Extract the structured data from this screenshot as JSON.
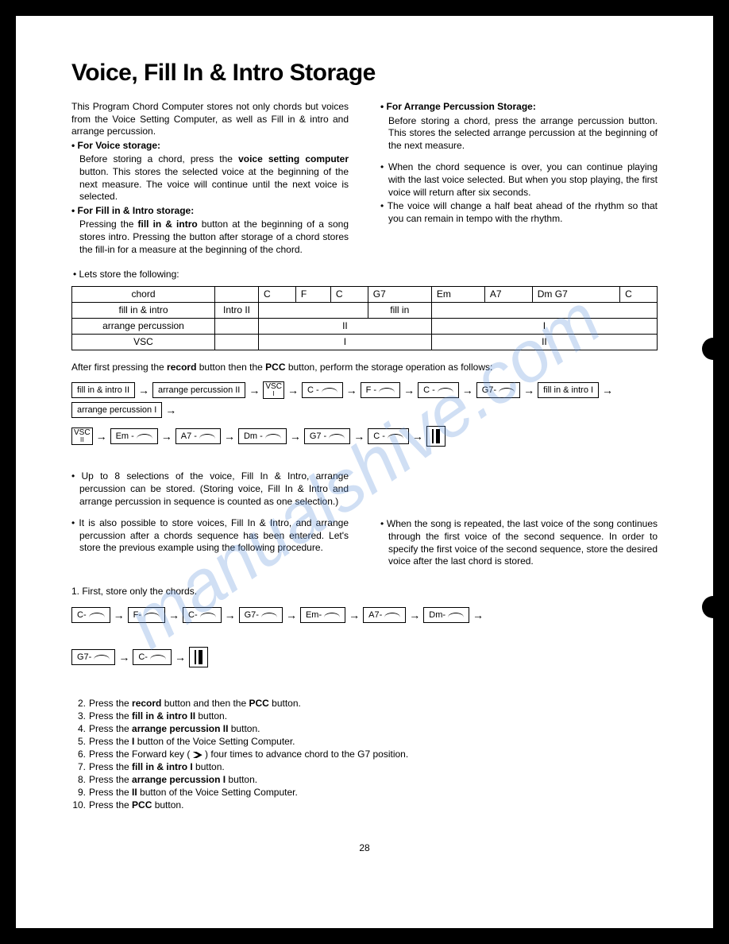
{
  "watermark": "manualshive.com",
  "title": "Voice, Fill In & Intro Storage",
  "intro_left": {
    "p1": "This Program Chord Computer stores not only chords but voices from the Voice Setting Computer, as well as Fill in & intro and arrange percussion.",
    "h1": "For Voice storage:",
    "p2a": "Before storing a chord, press the ",
    "p2b": "voice setting computer",
    "p2c": " button. This stores the selected voice at the beginning of the next measure. The voice will continue until the next voice is selected.",
    "h2": "For Fill in & Intro storage:",
    "p3a": "Pressing the ",
    "p3b": "fill in & intro",
    "p3c": " button at the beginning of a song stores intro. Pressing the button after storage of a chord stores the fill-in for a measure at the beginning of the chord."
  },
  "intro_right": {
    "h1": "For Arrange Percussion Storage:",
    "p1": "Before storing a chord, press the arrange percussion button. This stores the selected arrange percussion at the beginning of the next measure.",
    "p2": "When the chord sequence is over, you can continue playing with the last voice selected. But when you stop playing, the first voice will return after six seconds.",
    "p3": "The voice will change a half beat ahead of the rhythm so that you can remain in tempo with the rhythm."
  },
  "store_note": "Lets store the following:",
  "table": {
    "rows": [
      "chord",
      "fill in & intro",
      "arrange percussion",
      "VSC"
    ],
    "chord_cells": [
      "",
      "C",
      "F",
      "C",
      "G7",
      "Em",
      "A7",
      "Dm G7",
      "C"
    ],
    "fill_cells": [
      "Intro II",
      "",
      "",
      "",
      "fill in",
      "",
      "",
      "",
      ""
    ],
    "arr_merge1": "II",
    "arr_merge2": "I",
    "vsc_merge1": "I",
    "vsc_merge2": "II"
  },
  "after1a": "After first pressing the ",
  "after1b": "record",
  "after1c": " button then the ",
  "after1d": "PCC",
  "after1e": " button, perform the storage operation as follows:",
  "flow1": [
    "fill in & intro II",
    "arrange percussion II",
    "VSC|I",
    "C -",
    "F -",
    "C -",
    "G7-",
    "fill in & intro I",
    "arrange percussion I"
  ],
  "flow2": [
    "VSC|II",
    "Em -",
    "A7 -",
    "Dm -",
    "G7 -",
    "C -",
    "END"
  ],
  "mid_left": {
    "p1": "Up to 8 selections of the voice, Fill In & Intro, arrange percussion can be stored. (Storing voice, Fill In & Intro and arrange percussion in sequence is counted as one selection.)",
    "p2": "It is also possible to store voices, Fill In & Intro, and arrange percussion after a chords sequence has been entered. Let's store the previous example using the following procedure."
  },
  "mid_right": {
    "p1": "When the song is repeated, the last voice of the song continues through the first voice of the second sequence. In order to specify the first voice of the second sequence, store the desired voice after the last chord is stored."
  },
  "step1": "1. First, store only the chords.",
  "flow3": [
    "C-",
    "F-",
    "C-",
    "G7-",
    "Em-",
    "A7-",
    "Dm-"
  ],
  "flow4": [
    "G7-",
    "C-",
    "END"
  ],
  "steps": [
    {
      "n": "2.",
      "t": [
        "Press the ",
        "record",
        " button and then the ",
        "PCC",
        " button."
      ]
    },
    {
      "n": "3.",
      "t": [
        "Press the ",
        "fill in & intro II",
        " button."
      ]
    },
    {
      "n": "4.",
      "t": [
        "Press the ",
        "arrange percussion II",
        " button."
      ]
    },
    {
      "n": "5.",
      "t": [
        "Press the ",
        "I",
        " button of the Voice Setting Computer."
      ]
    },
    {
      "n": "6.",
      "t": [
        "Press the Forward key ( ",
        "FWD",
        " ) four times to advance chord to the G7 position."
      ]
    },
    {
      "n": "7.",
      "t": [
        "Press the ",
        "fill in & intro I",
        " button."
      ]
    },
    {
      "n": "8.",
      "t": [
        "Press the ",
        "arrange percussion I",
        " button."
      ]
    },
    {
      "n": "9.",
      "t": [
        "Press the ",
        "II",
        " button of the Voice Setting Computer."
      ]
    },
    {
      "n": "10.",
      "t": [
        "Press the ",
        "PCC",
        " button."
      ]
    }
  ],
  "page_num": "28"
}
